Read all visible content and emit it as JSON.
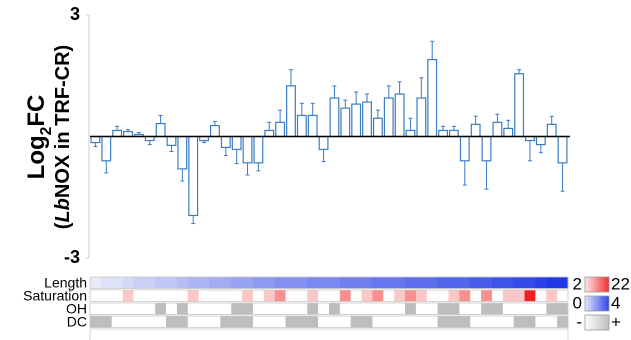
{
  "chart_data": {
    "type": "bar",
    "ylabel_line1": [
      {
        "text": "Log"
      },
      {
        "text": "2",
        "sub": true
      },
      {
        "text": "FC"
      }
    ],
    "ylabel_line2": [
      {
        "text": "("
      },
      {
        "text": "Lb",
        "italic": true
      },
      {
        "text": "NOX in TRF-CR)"
      }
    ],
    "ylim": [
      -3,
      3
    ],
    "yticks": [
      -3,
      3
    ],
    "color": "#3a7cc4",
    "values": [
      -0.15,
      -0.6,
      0.15,
      0.12,
      0.05,
      -0.1,
      0.32,
      -0.22,
      -0.8,
      -1.95,
      -0.1,
      0.27,
      -0.27,
      -0.32,
      -0.65,
      -0.65,
      0.15,
      0.35,
      1.25,
      0.52,
      0.52,
      -0.32,
      0.95,
      0.7,
      0.8,
      0.85,
      0.45,
      0.95,
      1.05,
      0.15,
      0.95,
      1.9,
      0.15,
      0.15,
      -0.6,
      0.3,
      -0.6,
      0.35,
      0.2,
      1.55,
      -0.1,
      -0.2,
      0.3,
      -0.65
    ],
    "errors": [
      0.1,
      0.3,
      0.1,
      0.05,
      0.05,
      0.1,
      0.2,
      0.15,
      0.3,
      0.2,
      0.05,
      0.1,
      0.2,
      0.35,
      0.3,
      0.2,
      0.2,
      0.3,
      0.4,
      0.3,
      0.3,
      0.3,
      0.3,
      0.2,
      0.3,
      0.2,
      0.2,
      0.3,
      0.3,
      0.3,
      0.5,
      0.45,
      0.1,
      0.1,
      0.6,
      0.2,
      0.7,
      0.2,
      0.2,
      0.1,
      0.5,
      0.2,
      0.2,
      0.7
    ],
    "tracks": [
      {
        "name": "Length",
        "colors": [
          "#e8eafb",
          "#2038e8"
        ],
        "values": [
          2,
          3,
          3,
          4,
          5,
          5,
          6,
          6,
          7,
          8,
          8,
          9,
          9,
          10,
          10,
          11,
          11,
          12,
          12,
          12,
          13,
          13,
          13,
          14,
          14,
          14,
          15,
          15,
          15,
          16,
          16,
          16,
          17,
          17,
          17,
          18,
          18,
          19,
          19,
          20,
          20,
          21,
          22,
          22
        ]
      },
      {
        "name": "Saturation",
        "colors": [
          "#ffffff",
          "#f02020"
        ],
        "values": [
          0,
          0,
          0,
          1,
          0,
          0,
          0,
          0,
          0,
          1,
          0,
          0,
          0,
          0,
          1,
          0,
          1,
          2,
          0,
          0,
          1,
          0,
          0,
          2,
          0,
          1,
          2,
          0,
          1,
          2,
          1,
          0,
          0,
          1,
          2,
          0,
          2,
          0,
          1,
          1,
          4,
          0,
          1,
          0
        ]
      },
      {
        "name": "OH",
        "colors": [
          "#ffffff",
          "#bdbdbd"
        ],
        "values": [
          0,
          0,
          0,
          0,
          0,
          0,
          1,
          0,
          1,
          0,
          0,
          0,
          0,
          1,
          1,
          0,
          0,
          0,
          0,
          0,
          1,
          0,
          1,
          0,
          0,
          0,
          0,
          0,
          0,
          1,
          0,
          0,
          1,
          1,
          0,
          0,
          1,
          1,
          0,
          0,
          0,
          0,
          1,
          1
        ]
      },
      {
        "name": "DC",
        "colors": [
          "#ffffff",
          "#bdbdbd"
        ],
        "values": [
          1,
          1,
          0,
          0,
          0,
          0,
          0,
          1,
          1,
          0,
          0,
          0,
          1,
          1,
          1,
          0,
          0,
          0,
          1,
          1,
          1,
          0,
          0,
          0,
          1,
          1,
          0,
          0,
          0,
          0,
          0,
          0,
          1,
          1,
          1,
          0,
          0,
          0,
          0,
          1,
          1,
          0,
          0,
          1
        ]
      }
    ],
    "legends": [
      {
        "lo": 2,
        "hi": 22,
        "colors": [
          "#fde6e6",
          "#f03030"
        ]
      },
      {
        "lo": 0,
        "hi": 4,
        "colors": [
          "#e4e8fc",
          "#2f44e8"
        ]
      },
      {
        "lo": "-",
        "hi": "+",
        "colors": [
          "#ffffff",
          "#bdbdbd"
        ]
      }
    ]
  }
}
